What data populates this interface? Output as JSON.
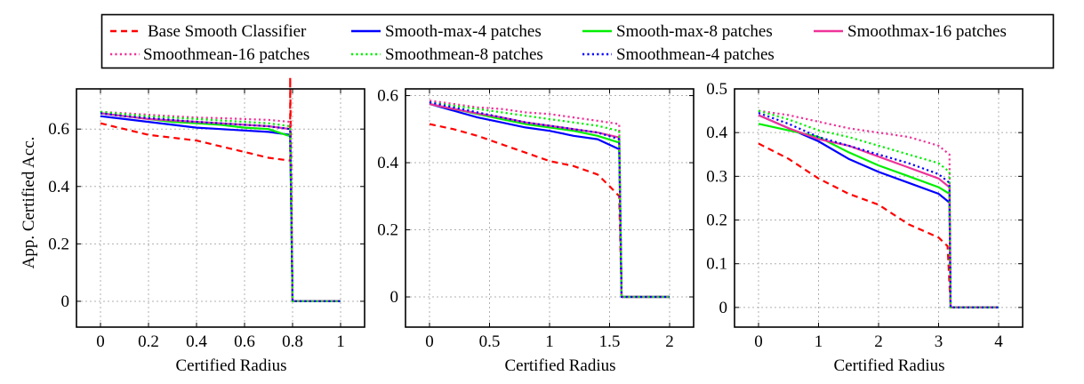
{
  "legend": {
    "entries": [
      {
        "label": "Base Smooth Classifier",
        "color": "#ff0000",
        "dash": "dashed"
      },
      {
        "label": "Smooth-max-4 patches",
        "color": "#0000ff",
        "dash": "solid"
      },
      {
        "label": "Smooth-max-8 patches",
        "color": "#00ee00",
        "dash": "solid"
      },
      {
        "label": "Smoothmax-16 patches",
        "color": "#ee3399",
        "dash": "solid"
      },
      {
        "label": "Smoothmean-16 patches",
        "color": "#ee3399",
        "dash": "dotted"
      },
      {
        "label": "Smoothmean-8 patches",
        "color": "#00ee00",
        "dash": "dotted"
      },
      {
        "label": "Smoothmean-4 patches",
        "color": "#0000ff",
        "dash": "dotted"
      }
    ]
  },
  "chart_data": [
    {
      "type": "line",
      "xlabel": "Certified Radius",
      "ylabel": "App. Certified Acc.",
      "xlim": [
        -0.1,
        1.1
      ],
      "ylim": [
        -0.09,
        0.74
      ],
      "xticks": [
        0,
        0.2,
        0.4,
        0.6,
        0.8,
        1
      ],
      "xtick_labels": [
        "0",
        "0.2",
        "0.4",
        "0.6",
        "0.8",
        "1"
      ],
      "yticks": [
        0,
        0.2,
        0.4,
        0.6
      ],
      "ytick_labels": [
        "0",
        "0.2",
        "0.4",
        "0.6"
      ],
      "grid": true,
      "series": [
        {
          "name": "Base Smooth Classifier",
          "x": [
            0,
            0.1,
            0.2,
            0.3,
            0.4,
            0.5,
            0.6,
            0.7,
            0.79,
            0.79,
            0.8,
            1
          ],
          "y": [
            0.62,
            0.6,
            0.58,
            0.57,
            0.56,
            0.54,
            0.52,
            0.5,
            0.49,
            0.78,
            0,
            0
          ]
        },
        {
          "name": "Smooth-max-4 patches",
          "x": [
            0,
            0.1,
            0.2,
            0.3,
            0.4,
            0.5,
            0.6,
            0.7,
            0.79,
            0.8,
            1
          ],
          "y": [
            0.645,
            0.635,
            0.625,
            0.615,
            0.605,
            0.6,
            0.595,
            0.59,
            0.58,
            0,
            0
          ]
        },
        {
          "name": "Smooth-max-8 patches",
          "x": [
            0,
            0.1,
            0.2,
            0.3,
            0.4,
            0.5,
            0.6,
            0.7,
            0.79,
            0.8,
            1
          ],
          "y": [
            0.655,
            0.645,
            0.635,
            0.625,
            0.62,
            0.615,
            0.605,
            0.6,
            0.575,
            0,
            0
          ]
        },
        {
          "name": "Smoothmax-16 patches",
          "x": [
            0,
            0.1,
            0.2,
            0.3,
            0.4,
            0.5,
            0.6,
            0.7,
            0.79,
            0.8,
            1
          ],
          "y": [
            0.655,
            0.645,
            0.635,
            0.63,
            0.625,
            0.62,
            0.615,
            0.61,
            0.6,
            0,
            0
          ]
        },
        {
          "name": "Smoothmean-16 patches",
          "x": [
            0,
            0.1,
            0.2,
            0.3,
            0.4,
            0.5,
            0.6,
            0.7,
            0.79,
            0.8,
            1
          ],
          "y": [
            0.66,
            0.655,
            0.65,
            0.645,
            0.64,
            0.638,
            0.635,
            0.632,
            0.625,
            0,
            0
          ]
        },
        {
          "name": "Smoothmean-8 patches",
          "x": [
            0,
            0.1,
            0.2,
            0.3,
            0.4,
            0.5,
            0.6,
            0.7,
            0.79,
            0.8,
            1
          ],
          "y": [
            0.66,
            0.652,
            0.645,
            0.64,
            0.635,
            0.63,
            0.625,
            0.62,
            0.61,
            0,
            0
          ]
        },
        {
          "name": "Smoothmean-4 patches",
          "x": [
            0,
            0.1,
            0.2,
            0.3,
            0.4,
            0.5,
            0.6,
            0.7,
            0.79,
            0.8,
            1
          ],
          "y": [
            0.655,
            0.645,
            0.638,
            0.632,
            0.625,
            0.62,
            0.615,
            0.61,
            0.6,
            0,
            0
          ]
        }
      ]
    },
    {
      "type": "line",
      "xlabel": "Certified Radius",
      "ylabel": "",
      "xlim": [
        -0.2,
        2.2
      ],
      "ylim": [
        -0.09,
        0.62
      ],
      "xticks": [
        0,
        0.5,
        1,
        1.5,
        2
      ],
      "xtick_labels": [
        "0",
        "0.5",
        "1",
        "1.5",
        "2"
      ],
      "yticks": [
        0,
        0.2,
        0.4,
        0.6
      ],
      "ytick_labels": [
        "0",
        "0.2",
        "0.4",
        "0.6"
      ],
      "grid": true,
      "series": [
        {
          "name": "Base Smooth Classifier",
          "x": [
            0,
            0.2,
            0.4,
            0.6,
            0.8,
            1.0,
            1.2,
            1.4,
            1.5,
            1.58,
            1.6,
            2
          ],
          "y": [
            0.515,
            0.5,
            0.48,
            0.455,
            0.43,
            0.405,
            0.39,
            0.365,
            0.33,
            0.3,
            0,
            0
          ]
        },
        {
          "name": "Smooth-max-4 patches",
          "x": [
            0,
            0.2,
            0.4,
            0.6,
            0.8,
            1.0,
            1.2,
            1.4,
            1.58,
            1.6,
            2
          ],
          "y": [
            0.575,
            0.555,
            0.535,
            0.52,
            0.505,
            0.495,
            0.48,
            0.47,
            0.44,
            0,
            0
          ]
        },
        {
          "name": "Smooth-max-8 patches",
          "x": [
            0,
            0.2,
            0.4,
            0.6,
            0.8,
            1.0,
            1.2,
            1.4,
            1.58,
            1.6,
            2
          ],
          "y": [
            0.575,
            0.56,
            0.545,
            0.53,
            0.515,
            0.505,
            0.495,
            0.48,
            0.46,
            0,
            0
          ]
        },
        {
          "name": "Smoothmax-16 patches",
          "x": [
            0,
            0.2,
            0.4,
            0.6,
            0.8,
            1.0,
            1.2,
            1.4,
            1.58,
            1.6,
            2
          ],
          "y": [
            0.575,
            0.56,
            0.547,
            0.535,
            0.52,
            0.51,
            0.5,
            0.49,
            0.475,
            0,
            0
          ]
        },
        {
          "name": "Smoothmean-16 patches",
          "x": [
            0,
            0.2,
            0.4,
            0.6,
            0.8,
            1.0,
            1.2,
            1.4,
            1.58,
            1.6,
            2
          ],
          "y": [
            0.585,
            0.575,
            0.565,
            0.56,
            0.55,
            0.545,
            0.535,
            0.525,
            0.515,
            0,
            0
          ]
        },
        {
          "name": "Smoothmean-8 patches",
          "x": [
            0,
            0.2,
            0.4,
            0.6,
            0.8,
            1.0,
            1.2,
            1.4,
            1.58,
            1.6,
            2
          ],
          "y": [
            0.58,
            0.57,
            0.56,
            0.55,
            0.54,
            0.53,
            0.52,
            0.51,
            0.495,
            0,
            0
          ]
        },
        {
          "name": "Smoothmean-4 patches",
          "x": [
            0,
            0.2,
            0.4,
            0.6,
            0.8,
            1.0,
            1.2,
            1.4,
            1.58,
            1.6,
            2
          ],
          "y": [
            0.58,
            0.565,
            0.55,
            0.535,
            0.52,
            0.51,
            0.5,
            0.49,
            0.47,
            0,
            0
          ]
        }
      ]
    },
    {
      "type": "line",
      "xlabel": "Certified Radius",
      "ylabel": "",
      "xlim": [
        -0.4,
        4.4
      ],
      "ylim": [
        -0.045,
        0.5
      ],
      "xticks": [
        0,
        1,
        2,
        3,
        4
      ],
      "xtick_labels": [
        "0",
        "1",
        "2",
        "3",
        "4"
      ],
      "yticks": [
        0,
        0.1,
        0.2,
        0.3,
        0.4,
        0.5
      ],
      "ytick_labels": [
        "0",
        "0.1",
        "0.2",
        "0.3",
        "0.4",
        "0.5"
      ],
      "grid": true,
      "series": [
        {
          "name": "Base Smooth Classifier",
          "x": [
            0,
            0.5,
            1.0,
            1.5,
            2.0,
            2.5,
            3.0,
            3.15,
            3.2,
            4
          ],
          "y": [
            0.375,
            0.34,
            0.295,
            0.26,
            0.235,
            0.19,
            0.16,
            0.14,
            0,
            0
          ]
        },
        {
          "name": "Smooth-max-4 patches",
          "x": [
            0,
            0.5,
            1.0,
            1.5,
            2.0,
            2.5,
            3.0,
            3.18,
            3.2,
            4
          ],
          "y": [
            0.44,
            0.41,
            0.38,
            0.34,
            0.31,
            0.285,
            0.26,
            0.24,
            0,
            0
          ]
        },
        {
          "name": "Smooth-max-8 patches",
          "x": [
            0,
            0.5,
            1.0,
            1.5,
            2.0,
            2.5,
            3.0,
            3.18,
            3.2,
            4
          ],
          "y": [
            0.42,
            0.405,
            0.39,
            0.355,
            0.325,
            0.3,
            0.275,
            0.26,
            0,
            0
          ]
        },
        {
          "name": "Smoothmax-16 patches",
          "x": [
            0,
            0.5,
            1.0,
            1.5,
            2.0,
            2.5,
            3.0,
            3.18,
            3.2,
            4
          ],
          "y": [
            0.44,
            0.41,
            0.385,
            0.37,
            0.345,
            0.32,
            0.295,
            0.275,
            0,
            0
          ]
        },
        {
          "name": "Smoothmean-16 patches",
          "x": [
            0,
            0.5,
            1.0,
            1.5,
            2.0,
            2.5,
            3.0,
            3.18,
            3.2,
            4
          ],
          "y": [
            0.45,
            0.44,
            0.425,
            0.41,
            0.4,
            0.39,
            0.37,
            0.35,
            0,
            0
          ]
        },
        {
          "name": "Smoothmean-8 patches",
          "x": [
            0,
            0.5,
            1.0,
            1.5,
            2.0,
            2.5,
            3.0,
            3.18,
            3.2,
            4
          ],
          "y": [
            0.45,
            0.43,
            0.405,
            0.39,
            0.37,
            0.35,
            0.33,
            0.31,
            0,
            0
          ]
        },
        {
          "name": "Smoothmean-4 patches",
          "x": [
            0,
            0.5,
            1.0,
            1.5,
            2.0,
            2.5,
            3.0,
            3.18,
            3.2,
            4
          ],
          "y": [
            0.445,
            0.42,
            0.39,
            0.37,
            0.35,
            0.33,
            0.305,
            0.285,
            0,
            0
          ]
        }
      ]
    }
  ]
}
